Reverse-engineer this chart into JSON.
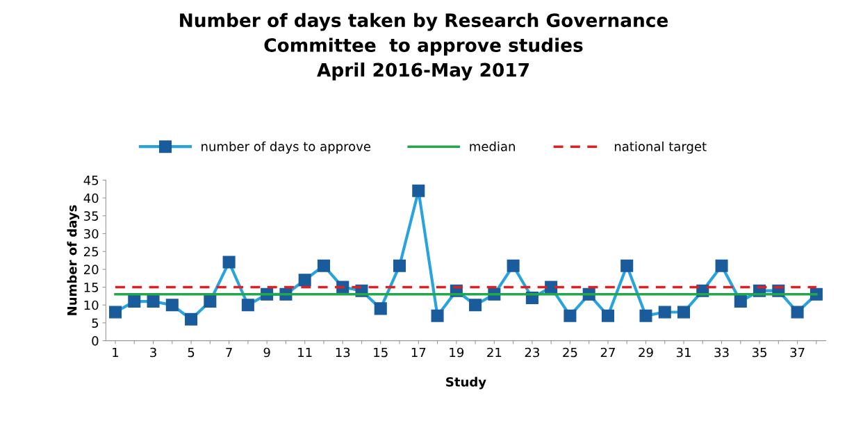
{
  "chart_data": {
    "type": "line",
    "title": "Number of days taken by Research Governance\nCommittee  to approve studies\nApril 2016-May 2017",
    "xlabel": "Study",
    "ylabel": "Number of days",
    "categories": [
      "1",
      null,
      "3",
      null,
      "5",
      null,
      "7",
      null,
      "9",
      null,
      "11",
      null,
      "13",
      null,
      "15",
      null,
      "17",
      null,
      "19",
      null,
      "21",
      null,
      "23",
      null,
      "25",
      null,
      "27",
      null,
      "29",
      null,
      "31",
      null,
      "33",
      null,
      "35",
      null,
      "37",
      null
    ],
    "series": [
      {
        "name": "number of days to approve",
        "color": "#29a3dd",
        "marker": "square",
        "line_style": "solid",
        "values": [
          8,
          11,
          11,
          10,
          6,
          11,
          22,
          10,
          13,
          13,
          17,
          21,
          15,
          14,
          9,
          21,
          42,
          7,
          14,
          10,
          13,
          21,
          12,
          15,
          7,
          13,
          7,
          21,
          7,
          8,
          8,
          14,
          21,
          11,
          14,
          14,
          8,
          13
        ]
      },
      {
        "name": "median",
        "color": "#22a84a",
        "marker": "none",
        "line_style": "solid",
        "values": [
          13,
          13,
          13,
          13,
          13,
          13,
          13,
          13,
          13,
          13,
          13,
          13,
          13,
          13,
          13,
          13,
          13,
          13,
          13,
          13,
          13,
          13,
          13,
          13,
          13,
          13,
          13,
          13,
          13,
          13,
          13,
          13,
          13,
          13,
          13,
          13,
          13,
          13
        ]
      },
      {
        "name": "national target",
        "color": "#e02020",
        "marker": "none",
        "line_style": "dashed",
        "values": [
          15,
          15,
          15,
          15,
          15,
          15,
          15,
          15,
          15,
          15,
          15,
          15,
          15,
          15,
          15,
          15,
          15,
          15,
          15,
          15,
          15,
          15,
          15,
          15,
          15,
          15,
          15,
          15,
          15,
          15,
          15,
          15,
          15,
          15,
          15,
          15,
          15,
          15
        ]
      }
    ],
    "ylim": [
      0,
      45
    ],
    "yticks": [
      0,
      5,
      10,
      15,
      20,
      25,
      30,
      35,
      40,
      45
    ],
    "grid": false,
    "legend": "top"
  }
}
